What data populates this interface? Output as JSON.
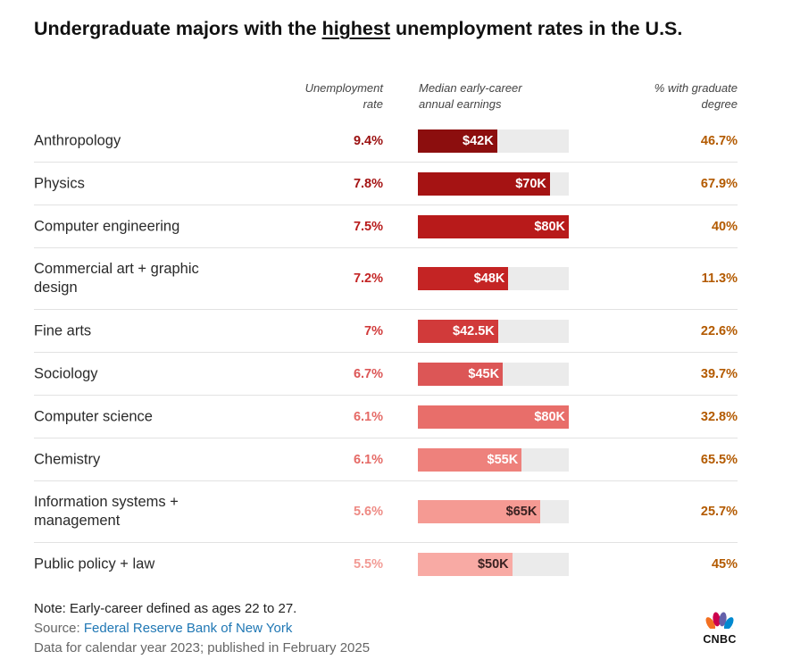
{
  "title": {
    "before": "Undergraduate majors with the ",
    "highlight": "highest",
    "after": " unemployment rates in the U.S."
  },
  "headers": {
    "unemployment": [
      "Unemployment",
      "rate"
    ],
    "earnings": [
      "Median early-career",
      "annual earnings"
    ],
    "grad_degree": [
      "% with graduate",
      "degree"
    ]
  },
  "chart_data": {
    "type": "table",
    "columns": [
      "",
      "Unemployment rate",
      "Median early-career annual earnings",
      "% with graduate degree"
    ],
    "earnings_max": 80000,
    "rows": [
      {
        "major": "Anthropology",
        "unemployment_rate": "9.4%",
        "earnings": 42000,
        "earnings_label": "$42K",
        "grad_degree": "46.7%",
        "bar_color": "#8c0e0e",
        "rate_color": "#9b1010",
        "label_color": "#ffffff"
      },
      {
        "major": "Physics",
        "unemployment_rate": "7.8%",
        "earnings": 70000,
        "earnings_label": "$70K",
        "grad_degree": "67.9%",
        "bar_color": "#a51313",
        "rate_color": "#a51313",
        "label_color": "#ffffff"
      },
      {
        "major": "Computer engineering",
        "unemployment_rate": "7.5%",
        "earnings": 80000,
        "earnings_label": "$80K",
        "grad_degree": "40%",
        "bar_color": "#b81a1a",
        "rate_color": "#b81a1a",
        "label_color": "#ffffff"
      },
      {
        "major": "Commercial art + graphic design",
        "unemployment_rate": "7.2%",
        "earnings": 48000,
        "earnings_label": "$48K",
        "grad_degree": "11.3%",
        "bar_color": "#c42424",
        "rate_color": "#c42424",
        "label_color": "#ffffff"
      },
      {
        "major": "Fine arts",
        "unemployment_rate": "7%",
        "earnings": 42500,
        "earnings_label": "$42.5K",
        "grad_degree": "22.6%",
        "bar_color": "#d13a3a",
        "rate_color": "#d13a3a",
        "label_color": "#ffffff"
      },
      {
        "major": "Sociology",
        "unemployment_rate": "6.7%",
        "earnings": 45000,
        "earnings_label": "$45K",
        "grad_degree": "39.7%",
        "bar_color": "#dc5656",
        "rate_color": "#dc5656",
        "label_color": "#ffffff"
      },
      {
        "major": "Computer science",
        "unemployment_rate": "6.1%",
        "earnings": 80000,
        "earnings_label": "$80K",
        "grad_degree": "32.8%",
        "bar_color": "#e86e6a",
        "rate_color": "#e56a66",
        "label_color": "#ffffff"
      },
      {
        "major": "Chemistry",
        "unemployment_rate": "6.1%",
        "earnings": 55000,
        "earnings_label": "$55K",
        "grad_degree": "65.5%",
        "bar_color": "#ee817c",
        "rate_color": "#e56a66",
        "label_color": "#ffffff"
      },
      {
        "major": "Information systems + management",
        "unemployment_rate": "5.6%",
        "earnings": 65000,
        "earnings_label": "$65K",
        "grad_degree": "25.7%",
        "bar_color": "#f59a93",
        "rate_color": "#ee8a84",
        "label_color": "#3a2222"
      },
      {
        "major": "Public policy + law",
        "unemployment_rate": "5.5%",
        "earnings": 50000,
        "earnings_label": "$50K",
        "grad_degree": "45%",
        "bar_color": "#f8aaa4",
        "rate_color": "#f29b95",
        "label_color": "#3a2222"
      }
    ]
  },
  "footer": {
    "note": "Note: Early-career defined as ages 22 to 27.",
    "source_prefix": "Source: ",
    "source_link": "Federal Reserve Bank of New York",
    "data_line": "Data for calendar year 2023; published in February 2025"
  },
  "logo": {
    "text": "CNBC"
  },
  "colors": {
    "grad_text": "#b35a00",
    "link": "#1f77b4"
  }
}
